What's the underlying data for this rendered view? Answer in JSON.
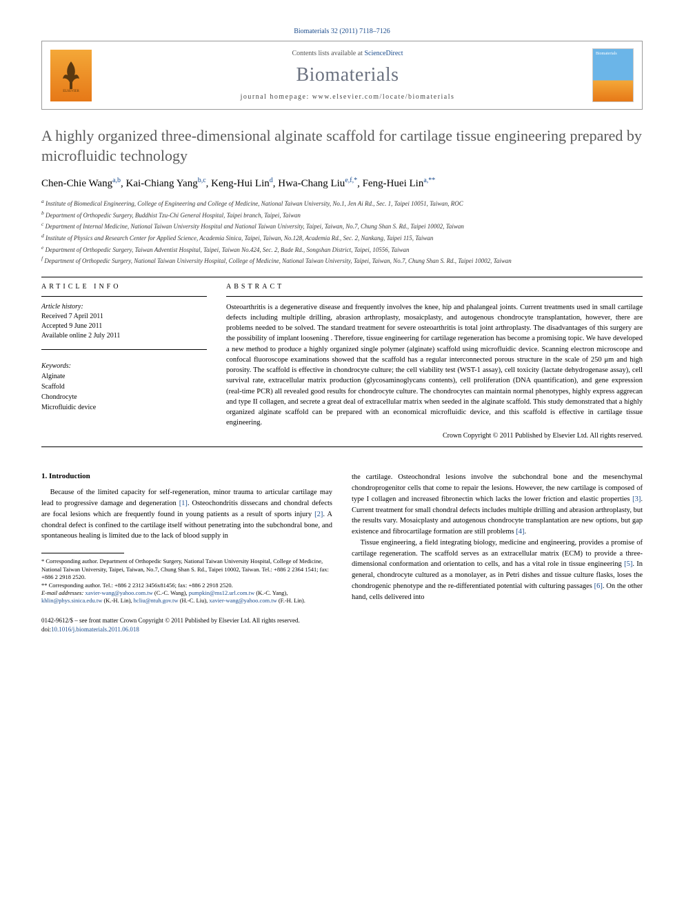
{
  "header": {
    "citation": "Biomaterials 32 (2011) 7118–7126",
    "contents_prefix": "Contents lists available at ",
    "contents_link": "ScienceDirect",
    "journal": "Biomaterials",
    "homepage_prefix": "journal homepage: ",
    "homepage_url": "www.elsevier.com/locate/biomaterials",
    "publisher": "ELSEVIER"
  },
  "article": {
    "title": "A highly organized three-dimensional alginate scaffold for cartilage tissue engineering prepared by microfluidic technology",
    "authors_html": "Chen-Chie Wang<sup>a,b</sup>, Kai-Chiang Yang<sup>b,c</sup>, Keng-Hui Lin<sup>d</sup>, Hwa-Chang Liu<sup>e,f,*</sup>, Feng-Huei Lin<sup>a,**</sup>",
    "affiliations": [
      "a Institute of Biomedical Engineering, College of Engineering and College of Medicine, National Taiwan University, No.1, Jen Ai Rd., Sec. 1, Taipei 10051, Taiwan, ROC",
      "b Department of Orthopedic Surgery, Buddhist Tzu-Chi General Hospital, Taipei branch, Taipei, Taiwan",
      "c Department of Internal Medicine, National Taiwan University Hospital and National Taiwan University, Taipei, Taiwan, No.7, Chung Shan S. Rd., Taipei 10002, Taiwan",
      "d Institute of Physics and Research Center for Applied Science, Academia Sinica, Taipei, Taiwan, No.128, Academia Rd., Sec. 2, Nankang, Taipei 115, Taiwan",
      "e Department of Orthopedic Surgery, Taiwan Adventist Hospital, Taipei, Taiwan No.424, Sec. 2, Bade Rd., Songshan District, Taipei, 10556, Taiwan",
      "f Department of Orthopedic Surgery, National Taiwan University Hospital, College of Medicine, National Taiwan University, Taipei, Taiwan, No.7, Chung Shan S. Rd., Taipei 10002, Taiwan"
    ]
  },
  "info": {
    "label": "ARTICLE INFO",
    "history_label": "Article history:",
    "received": "Received 7 April 2011",
    "accepted": "Accepted 9 June 2011",
    "online": "Available online 2 July 2011",
    "keywords_label": "Keywords:",
    "keywords": [
      "Alginate",
      "Scaffold",
      "Chondrocyte",
      "Microfluidic device"
    ]
  },
  "abstract": {
    "label": "ABSTRACT",
    "text": "Osteoarthritis is a degenerative disease and frequently involves the knee, hip and phalangeal joints. Current treatments used in small cartilage defects including multiple drilling, abrasion arthroplasty, mosaicplasty, and autogenous chondrocyte transplantation, however, there are problems needed to be solved. The standard treatment for severe osteoarthritis is total joint arthroplasty. The disadvantages of this surgery are the possibility of implant loosening . Therefore, tissue engineering for cartilage regeneration has become a promising topic. We have developed a new method to produce a highly organized single polymer (alginate) scaffold using microfluidic device. Scanning electron microscope and confocal fluoroscope examinations showed that the scaffold has a regular interconnected porous structure in the scale of 250 μm and high porosity. The scaffold is effective in chondrocyte culture; the cell viability test (WST-1 assay), cell toxicity (lactate dehydrogenase assay), cell survival rate, extracellular matrix production (glycosaminoglycans contents), cell proliferation (DNA quantification), and gene expression (real-time PCR) all revealed good results for chondrocyte culture. The chondrocytes can maintain normal phenotypes, highly express aggrecan and type II collagen, and secrete a great deal of extracellular matrix when seeded in the alginate scaffold. This study demonstrated that a highly organized alginate scaffold can be prepared with an economical microfluidic device, and this scaffold is effective in cartilage tissue engineering.",
    "copyright": "Crown Copyright © 2011 Published by Elsevier Ltd. All rights reserved."
  },
  "body": {
    "section1_head": "1. Introduction",
    "col1_para1": "Because of the limited capacity for self-regeneration, minor trauma to articular cartilage may lead to progressive damage and degeneration [1]. Osteochondritis dissecans and chondral defects are focal lesions which are frequently found in young patients as a result of sports injury [2]. A chondral defect is confined to the cartilage itself without penetrating into the subchondral bone, and spontaneous healing is limited due to the lack of blood supply in",
    "col2_para1": "the cartilage. Osteochondral lesions involve the subchondral bone and the mesenchymal chondroprogenitor cells that come to repair the lesions. However, the new cartilage is composed of type I collagen and increased fibronectin which lacks the lower friction and elastic properties [3]. Current treatment for small chondral defects includes multiple drilling and abrasion arthroplasty, but the results vary. Mosaicplasty and autogenous chondrocyte transplantation are new options, but gap existence and fibrocartilage formation are still problems [4].",
    "col2_para2": "Tissue engineering, a field integrating biology, medicine and engineering, provides a promise of cartilage regeneration. The scaffold serves as an extracellular matrix (ECM) to provide a three-dimensional conformation and orientation to cells, and has a vital role in tissue engineering [5]. In general, chondrocyte cultured as a monolayer, as in Petri dishes and tissue culture flasks, loses the chondrogenic phenotype and the re-differentiated potential with culturing passages [6]. On the other hand, cells delivered into"
  },
  "footnotes": {
    "corr1": "* Corresponding author. Department of Orthopedic Surgery, National Taiwan University Hospital, College of Medicine, National Taiwan University, Taipei, Taiwan, No.7, Chung Shan S. Rd., Taipei 10002, Taiwan. Tel.: +886 2 2364 1541; fax: +886 2 2918 2520.",
    "corr2": "** Corresponding author. Tel.: +886 2 2312 3456x81456; fax: +886 2 2918 2520.",
    "emails_label": "E-mail addresses: ",
    "emails": "xavier-wang@yahoo.com.tw (C.-C. Wang), pumpkin@ms12.url.com.tw (K.-C. Yang), khlin@phys.sinica.edu.tw (K.-H. Lin), hcliu@ntuh.gov.tw (H.-C. Liu), xavier-wang@yahoo.com.tw (F.-H. Lin)."
  },
  "footer": {
    "line1": "0142-9612/$ – see front matter Crown Copyright © 2011 Published by Elsevier Ltd. All rights reserved.",
    "doi_label": "doi:",
    "doi": "10.1016/j.biomaterials.2011.06.018"
  },
  "colors": {
    "link": "#1a4b8c",
    "title_gray": "#5b5b5b",
    "journal_gray": "#6b7280",
    "elsevier_orange": "#e67817"
  }
}
